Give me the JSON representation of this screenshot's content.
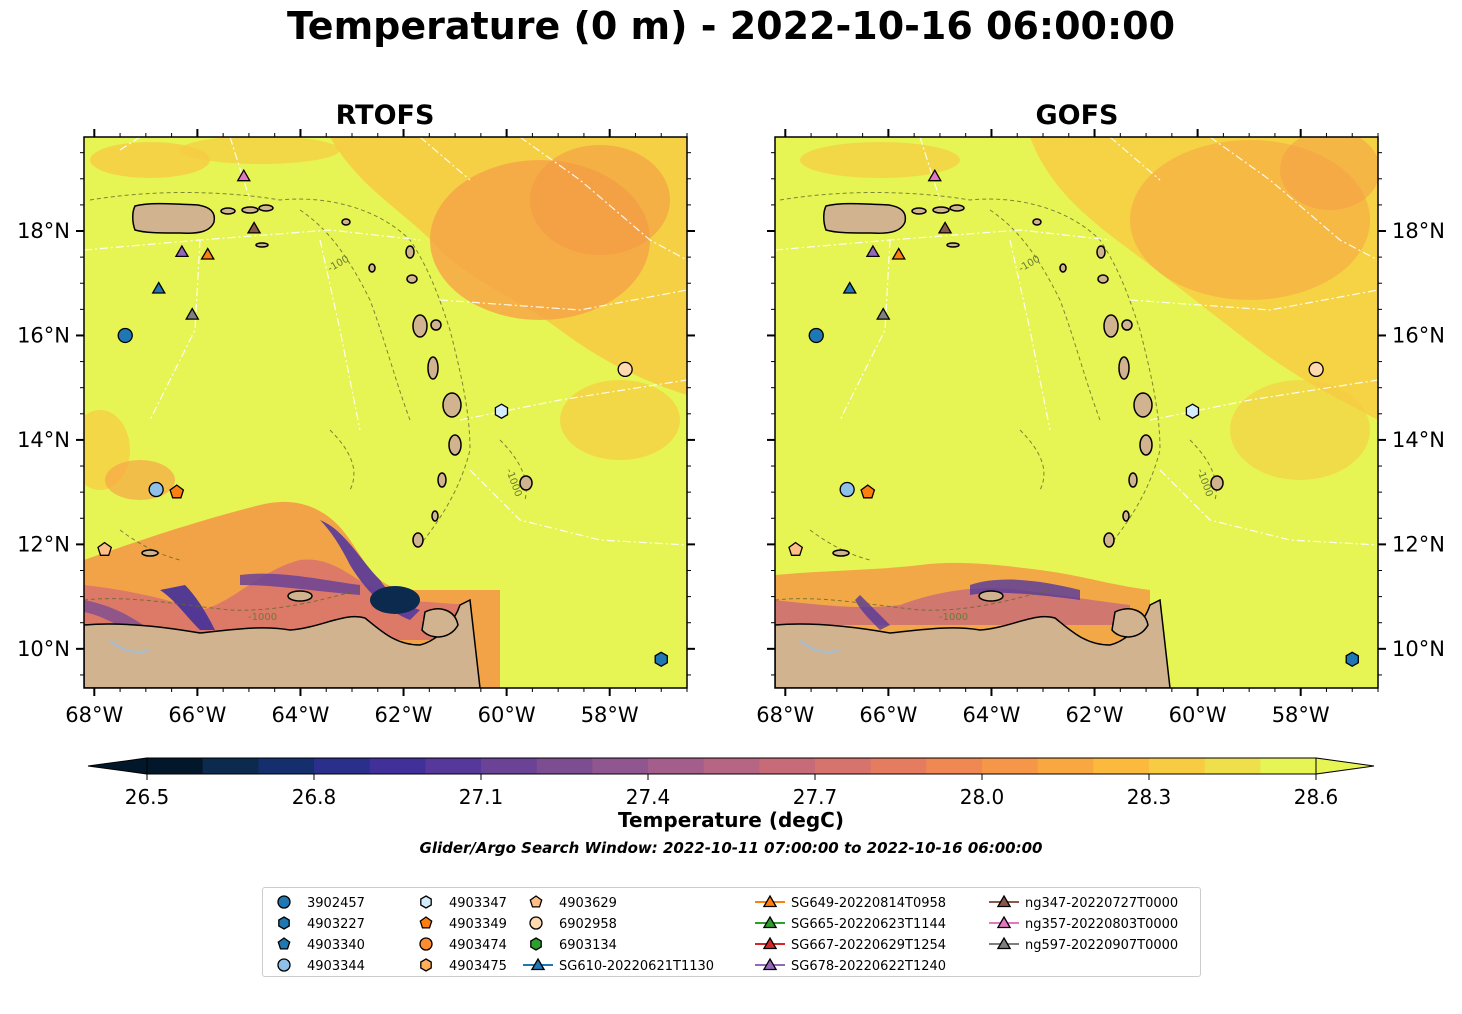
{
  "title": "Temperature (0 m) - 2022-10-16 06:00:00",
  "panels": [
    {
      "title": "RTOFS"
    },
    {
      "title": "GOFS"
    }
  ],
  "axes": {
    "lon_ticks": [
      "68°W",
      "66°W",
      "64°W",
      "62°W",
      "60°W",
      "58°W"
    ],
    "lat_ticks": [
      "10°N",
      "12°N",
      "14°N",
      "16°N",
      "18°N"
    ],
    "lon_range": [
      -68.2,
      -56.5
    ],
    "lat_range": [
      9.25,
      19.8
    ],
    "isobath_labels": [
      "-100",
      "-1000"
    ]
  },
  "colorbar": {
    "label": "Temperature (degC)",
    "ticks": [
      "26.5",
      "26.8",
      "27.1",
      "27.4",
      "27.7",
      "28.0",
      "28.3",
      "28.6"
    ],
    "range": [
      26.4,
      28.7
    ],
    "extend": "both",
    "colors": [
      "#03172a",
      "#0c2a4d",
      "#142e6e",
      "#2a2f8c",
      "#42309a",
      "#55389a",
      "#6a4296",
      "#7d4d92",
      "#905690",
      "#a35e8b",
      "#b66583",
      "#c76b79",
      "#d7736d",
      "#e57c60",
      "#ef8853",
      "#f59648",
      "#f9a741",
      "#fbb93d",
      "#f7cc42",
      "#eedf4b",
      "#e6f554"
    ]
  },
  "search_window": "Glider/Argo Search Window: 2022-10-11 07:00:00 to 2022-10-16 06:00:00",
  "legend": {
    "columns": [
      [
        {
          "label": "3902457",
          "marker": "circle",
          "color": "#1f77b4"
        },
        {
          "label": "4903227",
          "marker": "hexagon",
          "color": "#1f77b4"
        },
        {
          "label": "4903340",
          "marker": "pentagon",
          "color": "#1f77b4"
        },
        {
          "label": "4903344",
          "marker": "circle",
          "color": "#8ec0ea"
        }
      ],
      [
        {
          "label": "4903347",
          "marker": "hexagon",
          "color": "#d4ecfb"
        },
        {
          "label": "4903349",
          "marker": "pentagon",
          "color": "#ff7f0e"
        },
        {
          "label": "4903474",
          "marker": "circle",
          "color": "#ff8c2e"
        },
        {
          "label": "4903475",
          "marker": "hexagon",
          "color": "#ffae5a"
        }
      ],
      [
        {
          "label": "4903629",
          "marker": "pentagon",
          "color": "#ffbf86"
        },
        {
          "label": "6902958",
          "marker": "circle",
          "color": "#ffd9b0"
        },
        {
          "label": "6903134",
          "marker": "hexagon",
          "color": "#2ca02c"
        },
        {
          "label": "SG610-20220621T1130",
          "marker": "triangle",
          "color": "#1f77b4",
          "line": true
        }
      ],
      [
        {
          "label": "SG649-20220814T0958",
          "marker": "triangle",
          "color": "#ff7f0e",
          "line": true
        },
        {
          "label": "SG665-20220623T1144",
          "marker": "triangle",
          "color": "#2ca02c",
          "line": true
        },
        {
          "label": "SG667-20220629T1254",
          "marker": "triangle",
          "color": "#d62728",
          "line": true
        },
        {
          "label": "SG678-20220622T1240",
          "marker": "triangle",
          "color": "#9467bd",
          "line": true
        }
      ],
      [
        {
          "label": "ng347-20220727T0000",
          "marker": "triangle",
          "color": "#8c564b",
          "line": true
        },
        {
          "label": "ng357-20220803T0000",
          "marker": "triangle",
          "color": "#e377c2",
          "line": true
        },
        {
          "label": "ng597-20220907T0000",
          "marker": "triangle",
          "color": "#7f7f7f",
          "line": true
        }
      ]
    ]
  },
  "chart_data": {
    "type": "heatmap",
    "title": "Temperature (0 m) - 2022-10-16 06:00:00",
    "variable": "Temperature (degC)",
    "x_label": "",
    "y_label": "",
    "markers": [
      {
        "name": "3902457",
        "lon": -67.4,
        "lat": 16.0,
        "marker": "circle",
        "color": "#1f77b4"
      },
      {
        "name": "4903344",
        "lon": -66.8,
        "lat": 13.05,
        "marker": "circle",
        "color": "#8ec0ea"
      },
      {
        "name": "4903349",
        "lon": -66.4,
        "lat": 13.0,
        "marker": "pentagon",
        "color": "#ff7f0e"
      },
      {
        "name": "4903629",
        "lon": -67.8,
        "lat": 11.9,
        "marker": "pentagon",
        "color": "#ffbf86"
      },
      {
        "name": "4903347",
        "lon": -60.1,
        "lat": 14.55,
        "marker": "hexagon",
        "color": "#d4ecfb"
      },
      {
        "name": "6902958",
        "lon": -57.7,
        "lat": 15.35,
        "marker": "circle",
        "color": "#ffd9b0"
      },
      {
        "name": "4903227",
        "lon": -57.0,
        "lat": 9.8,
        "marker": "hexagon",
        "color": "#1f77b4"
      },
      {
        "name": "SG610-20220621T1130",
        "lon": -66.75,
        "lat": 16.9,
        "marker": "triangle",
        "color": "#1f77b4"
      },
      {
        "name": "SG649-20220814T0958",
        "lon": -65.8,
        "lat": 17.55,
        "marker": "triangle",
        "color": "#ff7f0e"
      },
      {
        "name": "SG678-20220622T1240",
        "lon": -66.3,
        "lat": 17.6,
        "marker": "triangle",
        "color": "#9467bd"
      },
      {
        "name": "ng347-20220727T0000",
        "lon": -64.9,
        "lat": 18.05,
        "marker": "triangle",
        "color": "#8c564b"
      },
      {
        "name": "ng357-20220803T0000",
        "lon": -65.1,
        "lat": 19.05,
        "marker": "triangle",
        "color": "#e377c2"
      },
      {
        "name": "ng597-20220907T0000",
        "lon": -66.1,
        "lat": 16.4,
        "marker": "triangle",
        "color": "#7f7f7f"
      }
    ]
  }
}
